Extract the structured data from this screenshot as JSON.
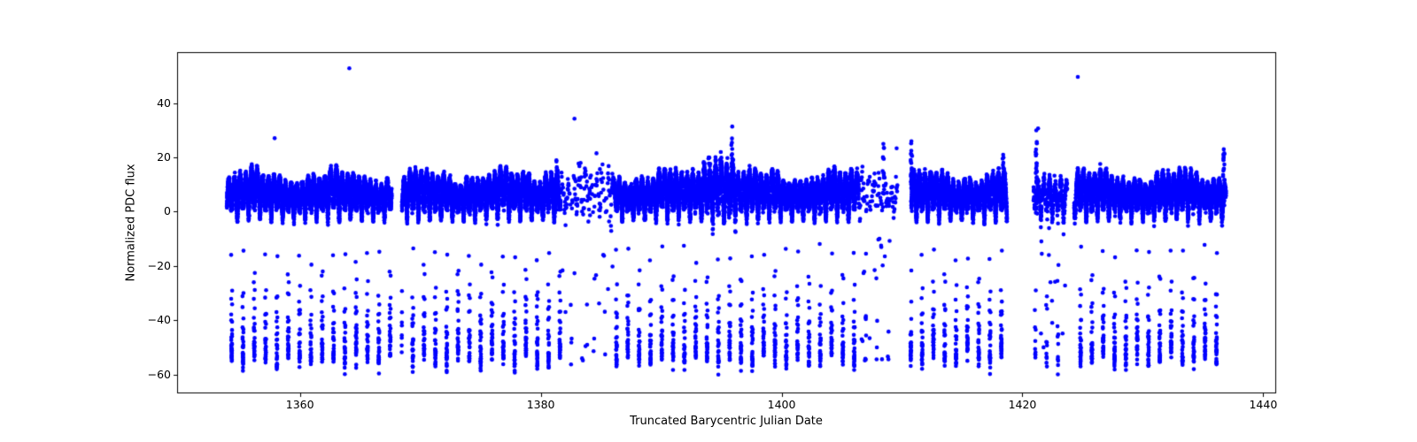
{
  "figure": {
    "background": "#ffffff",
    "frame_color": "#000000",
    "text_color": "#000000"
  },
  "chart_data": {
    "type": "scatter",
    "title": "",
    "xlabel": "Truncated Barycentric Julian Date",
    "ylabel": "Normalized PDC flux",
    "xlim": [
      1349.8,
      1441.0
    ],
    "ylim": [
      -67.0,
      58.5
    ],
    "xticks": [
      1360,
      1380,
      1400,
      1420,
      1440
    ],
    "xtick_labels": [
      "1360",
      "1380",
      "1400",
      "1420",
      "1440"
    ],
    "yticks": [
      40,
      20,
      0,
      -20,
      -40,
      -60
    ],
    "ytick_labels": [
      "40",
      "20",
      "0",
      "−20",
      "−40",
      "−60"
    ],
    "grid": false,
    "legend": null,
    "marker": {
      "shape": "circle",
      "color": "#0000ff",
      "radius": 2.3
    },
    "description": "TESS-like light curve: periodic deep eclipses to ~-55 every ~0.94 d, out-of-eclipse humps 0..+16, baseline band at 0, data gaps and sparse scattered intervals",
    "synthesis": {
      "model": {
        "period": 0.94,
        "t0": 1354.33,
        "eclipse_half_width_phase": 0.046,
        "eclipse_depth_base": 54,
        "eclipse_depth_var": 2.2,
        "amp_base": 12.3,
        "amp_var": 2.2,
        "baseline_offset": -0.6
      },
      "segments": [
        {
          "start": 1353.93,
          "end": 1367.62,
          "dt": 0.003,
          "noise": 1.0,
          "drop": 0
        },
        {
          "start": 1368.45,
          "end": 1381.65,
          "dt": 0.003,
          "noise": 1.0,
          "drop": 0
        },
        {
          "start": 1381.65,
          "end": 1385.95,
          "dt": 0.024,
          "noise": 2.8,
          "drop": 0.3
        },
        {
          "start": 1385.95,
          "end": 1406.4,
          "dt": 0.003,
          "noise": 1.0,
          "drop": 0
        },
        {
          "start": 1406.4,
          "end": 1409.62,
          "dt": 0.024,
          "noise": 2.8,
          "drop": 0.3
        },
        {
          "start": 1410.7,
          "end": 1418.72,
          "dt": 0.003,
          "noise": 1.0,
          "drop": 0
        },
        {
          "start": 1420.92,
          "end": 1423.72,
          "dt": 0.007,
          "noise": 1.6,
          "drop": 0.12
        },
        {
          "start": 1424.3,
          "end": 1436.9,
          "dt": 0.003,
          "noise": 1.0,
          "drop": 0
        }
      ],
      "amp_boosts": [
        [
          1393.4,
          1396.3,
          5
        ],
        [
          1380.3,
          1381.7,
          3
        ]
      ],
      "noise_boosts": [
        [
          1393.4,
          1396.3,
          2.2
        ]
      ],
      "spikes": [
        {
          "t": 1381.3,
          "ymax": 19,
          "n": 10
        },
        {
          "t": 1393.95,
          "ymax": 20,
          "n": 12
        },
        {
          "t": 1394.95,
          "ymax": 22,
          "n": 12
        },
        {
          "t": 1395.88,
          "ymax": 27,
          "n": 10
        },
        {
          "t": 1408.45,
          "ymax": 25,
          "n": 14
        },
        {
          "t": 1410.78,
          "ymax": 26,
          "n": 26
        },
        {
          "t": 1418.4,
          "ymax": 21,
          "n": 18
        },
        {
          "t": 1421.15,
          "ymax": 30,
          "n": 24
        },
        {
          "t": 1436.72,
          "ymax": 23,
          "n": 20
        }
      ],
      "extra_scatter": [
        {
          "start": 1381.8,
          "end": 1386.0,
          "n": 26,
          "ymin": -58,
          "ymax": 24
        },
        {
          "start": 1406.5,
          "end": 1409.6,
          "n": 26,
          "ymin": -58,
          "ymax": 25
        },
        {
          "start": 1420.95,
          "end": 1423.7,
          "n": 18,
          "ymin": -56,
          "ymax": 10
        }
      ],
      "outliers": [
        [
          1357.9,
          27.1
        ],
        [
          1364.1,
          52.9
        ],
        [
          1382.8,
          34.3
        ],
        [
          1395.9,
          31.4
        ],
        [
          1421.3,
          30.7
        ],
        [
          1424.6,
          49.7
        ]
      ]
    }
  }
}
